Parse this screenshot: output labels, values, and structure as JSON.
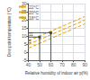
{
  "chart_data": {
    "type": "line",
    "xlabel": "Relative humidity of indoor air p(%)",
    "ylabel": "Dew point temperature (°C)",
    "xlim": [
      40,
      90
    ],
    "ylim": [
      -5,
      30
    ],
    "xticks": [
      40,
      50,
      60,
      70,
      80,
      90
    ],
    "yticks": [
      -5,
      0,
      5,
      10,
      15,
      20,
      25,
      30
    ],
    "grid": true,
    "legend": "upper left",
    "series": [
      {
        "name": "22°C",
        "color": "#e8a000",
        "line_style": "dashed",
        "x": [
          40,
          90
        ],
        "values": [
          7.0,
          22.0
        ]
      },
      {
        "name": "20°C",
        "color": "#e8a000",
        "line_style": "dashed",
        "x": [
          40,
          90
        ],
        "values": [
          4.8,
          19.8
        ]
      },
      {
        "name": "18°C",
        "color": "#e8a000",
        "line_style": "dashed",
        "x": [
          40,
          90
        ],
        "values": [
          2.5,
          17.5
        ]
      }
    ],
    "points": [
      {
        "x": 50,
        "y": 9.3,
        "marker": "square",
        "color": "#333333"
      },
      {
        "x": 60,
        "y": 12.0,
        "marker": "square",
        "color": "#333333"
      }
    ],
    "hlines": [
      {
        "y": 9.3,
        "x_start": 40,
        "x_end": 50,
        "color": "#333333"
      },
      {
        "y": 12.0,
        "x_start": 40,
        "x_end": 60,
        "color": "#333333"
      }
    ],
    "vlines": [
      {
        "x": 50,
        "y_start": -5,
        "y_end": 9.3,
        "color": "#333333"
      },
      {
        "x": 60,
        "y_start": -5,
        "y_end": 12.0,
        "color": "#333333"
      }
    ],
    "annotations": [
      {
        "text": "11",
        "x": 40.5,
        "y": 9.7
      },
      {
        "text": "5",
        "x": 40.5,
        "y": 4.8
      }
    ]
  }
}
